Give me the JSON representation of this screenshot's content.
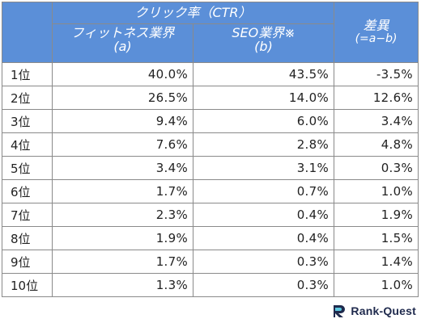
{
  "header": {
    "ctr_title": "クリック率（CTR）",
    "col_a_line1": "フィットネス業界",
    "col_a_line2": "(a)",
    "col_b_line1": "SEO業界※",
    "col_b_line2": "(b)",
    "diff_line1": "差異",
    "diff_line2": "(=a−b)"
  },
  "rows": [
    {
      "rank": "1位",
      "a": "40.0%",
      "b": "43.5%",
      "diff": "-3.5%"
    },
    {
      "rank": "2位",
      "a": "26.5%",
      "b": "14.0%",
      "diff": "12.6%"
    },
    {
      "rank": "3位",
      "a": "9.4%",
      "b": "6.0%",
      "diff": "3.4%"
    },
    {
      "rank": "4位",
      "a": "7.6%",
      "b": "2.8%",
      "diff": "4.8%"
    },
    {
      "rank": "5位",
      "a": "3.4%",
      "b": "3.1%",
      "diff": "0.3%"
    },
    {
      "rank": "6位",
      "a": "1.7%",
      "b": "0.7%",
      "diff": "1.0%"
    },
    {
      "rank": "7位",
      "a": "2.3%",
      "b": "0.4%",
      "diff": "1.9%"
    },
    {
      "rank": "8位",
      "a": "1.9%",
      "b": "0.4%",
      "diff": "1.5%"
    },
    {
      "rank": "9位",
      "a": "1.7%",
      "b": "0.3%",
      "diff": "1.4%"
    },
    {
      "rank": "10位",
      "a": "1.3%",
      "b": "0.3%",
      "diff": "1.0%"
    }
  ],
  "logo": {
    "text": "Rank-Quest",
    "icon": "rank-quest-logo-icon"
  },
  "colors": {
    "header_bg": "#5b8fd8",
    "header_text": "#ffffff",
    "border": "#8a8a8a"
  }
}
